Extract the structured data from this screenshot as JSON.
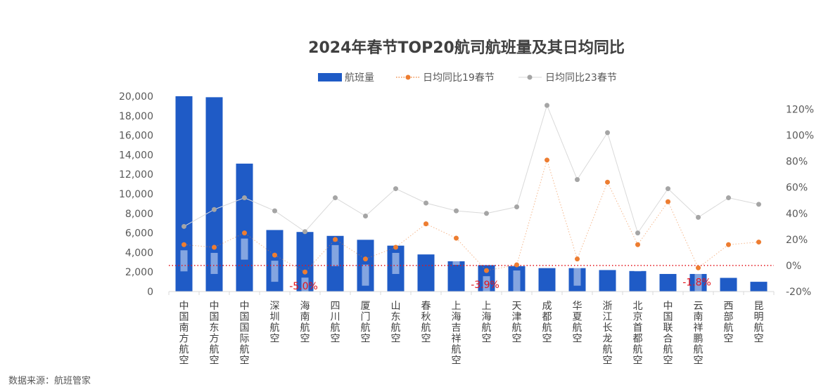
{
  "source": "数据来源：航班管家",
  "chart_data": {
    "type": "bar",
    "title": "2024年春节TOP20航司航班量及其日均同比",
    "categories": [
      "中国南方航空",
      "中国东方航空",
      "中国国际航空",
      "深圳航空",
      "海南航空",
      "四川航空",
      "厦门航空",
      "山东航空",
      "春秋航空",
      "上海吉祥航空",
      "上海航空",
      "天津航空",
      "成都航空",
      "华夏航空",
      "浙江长龙航空",
      "北京首都航空",
      "中国联合航空",
      "云南祥鹏航空",
      "西部航空",
      "昆明航空"
    ],
    "series": [
      {
        "name": "航班量",
        "type": "bar",
        "axis": "left",
        "color": "#1f5bc6",
        "values": [
          20000,
          19900,
          13100,
          6300,
          6100,
          5700,
          5300,
          4700,
          3800,
          3100,
          2700,
          2600,
          2400,
          2400,
          2200,
          2100,
          1800,
          1800,
          1400,
          1000
        ]
      },
      {
        "name": "日均同比19春节",
        "type": "line",
        "axis": "right",
        "color": "#ed7d31",
        "line_style": "dotted",
        "values": [
          16,
          14,
          25,
          8,
          -5.0,
          20,
          5,
          14,
          32,
          21,
          -3.9,
          0.5,
          81,
          5,
          64,
          16,
          49,
          -1.8,
          16,
          18
        ],
        "data_labels": [
          null,
          null,
          null,
          null,
          "-5.0%",
          null,
          null,
          null,
          null,
          null,
          "-3.9%",
          null,
          null,
          null,
          null,
          null,
          null,
          "-1.8%",
          null,
          null
        ]
      },
      {
        "name": "日均同比23春节",
        "type": "line",
        "axis": "right",
        "color": "#a5a5a5",
        "line_color": "#d9d9d9",
        "line_style": "solid",
        "values": [
          30,
          43,
          52,
          42,
          26,
          52,
          38,
          59,
          48,
          42,
          40,
          45,
          123,
          66,
          102,
          25,
          59,
          37,
          52,
          47
        ]
      }
    ],
    "y_left": {
      "ylim": [
        0,
        20000
      ],
      "ticks": [
        0,
        2000,
        4000,
        6000,
        8000,
        10000,
        12000,
        14000,
        16000,
        18000,
        20000
      ],
      "tick_labels": [
        "0",
        "2,000",
        "4,000",
        "6,000",
        "8,000",
        "10,000",
        "12,000",
        "14,000",
        "16,000",
        "18,000",
        "20,000"
      ]
    },
    "y_right": {
      "ylim": [
        -20,
        130
      ],
      "ticks": [
        -20,
        0,
        20,
        40,
        60,
        80,
        100,
        120
      ],
      "tick_labels": [
        "-20%",
        "0%",
        "20%",
        "40%",
        "60%",
        "80%",
        "100%",
        "120%"
      ]
    },
    "reference_line": {
      "axis": "right",
      "value": 0,
      "color": "#e4141b",
      "line_style": "dotted"
    },
    "grid": false,
    "legend_position": "top"
  }
}
